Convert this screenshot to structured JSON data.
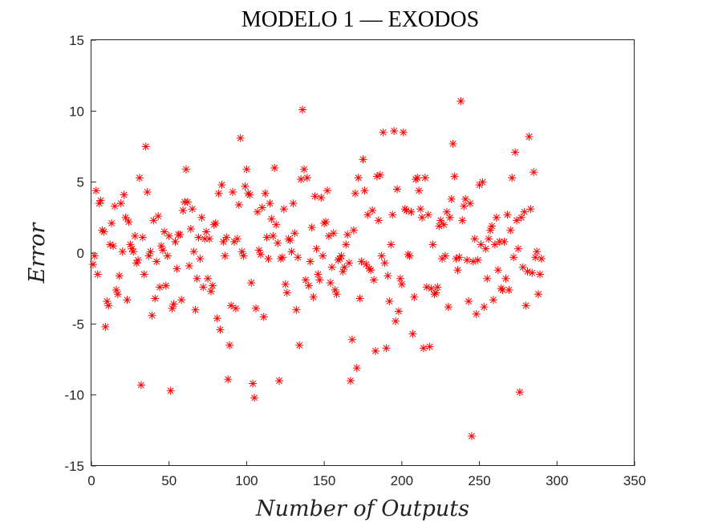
{
  "chart_data": {
    "type": "scatter",
    "title": "MODELO 1 — EXODOS",
    "xlabel": "Number of Outputs",
    "ylabel": "Error",
    "xlim": [
      0,
      350
    ],
    "ylim": [
      -15,
      15
    ],
    "xticks": [
      0,
      50,
      100,
      150,
      200,
      250,
      300,
      350
    ],
    "yticks": [
      -15,
      -10,
      -5,
      0,
      5,
      10,
      15
    ],
    "xtick_labels": [
      "0",
      "50",
      "100",
      "150",
      "200",
      "250",
      "300",
      "350"
    ],
    "ytick_labels": [
      "-15",
      "-10",
      "-5",
      "0",
      "5",
      "10",
      "15"
    ],
    "marker": "asterisk",
    "marker_color": "#ff0000",
    "grid": false,
    "legend": "none",
    "series": [
      {
        "points": [
          [
            1,
            -0.8
          ],
          [
            2,
            -0.2
          ],
          [
            3,
            4.4
          ],
          [
            4,
            -1.5
          ],
          [
            5,
            3.5
          ],
          [
            6,
            3.7
          ],
          [
            7,
            1.6
          ],
          [
            8,
            1.5
          ],
          [
            9,
            -5.2
          ],
          [
            10,
            -3.4
          ],
          [
            11,
            -3.7
          ],
          [
            12,
            0.6
          ],
          [
            13,
            2.1
          ],
          [
            14,
            0.5
          ],
          [
            15,
            3.3
          ],
          [
            16,
            -2.6
          ],
          [
            17,
            -2.9
          ],
          [
            18,
            -1.6
          ],
          [
            19,
            3.5
          ],
          [
            20,
            0.1
          ],
          [
            21,
            4.1
          ],
          [
            22,
            2.5
          ],
          [
            23,
            -3.3
          ],
          [
            24,
            2.2
          ],
          [
            25,
            0.6
          ],
          [
            26,
            0.3
          ],
          [
            27,
            0.1
          ],
          [
            28,
            1.2
          ],
          [
            29,
            -0.7
          ],
          [
            30,
            -0.5
          ],
          [
            31,
            5.3
          ],
          [
            32,
            -9.3
          ],
          [
            33,
            1.1
          ],
          [
            34,
            -1.5
          ],
          [
            35,
            7.5
          ],
          [
            36,
            4.3
          ],
          [
            37,
            -0.2
          ],
          [
            38,
            0.1
          ],
          [
            39,
            -4.4
          ],
          [
            40,
            2.3
          ],
          [
            41,
            -3.2
          ],
          [
            42,
            -0.6
          ],
          [
            43,
            2.6
          ],
          [
            44,
            -2.4
          ],
          [
            45,
            0.5
          ],
          [
            46,
            0.2
          ],
          [
            47,
            1.5
          ],
          [
            48,
            -2.3
          ],
          [
            49,
            -0.2
          ],
          [
            50,
            1.2
          ],
          [
            51,
            -9.7
          ],
          [
            52,
            -3.9
          ],
          [
            53,
            -3.6
          ],
          [
            54,
            0.8
          ],
          [
            55,
            -1.1
          ],
          [
            56,
            1.3
          ],
          [
            57,
            1.3
          ],
          [
            58,
            -3.3
          ],
          [
            59,
            3.0
          ],
          [
            60,
            3.6
          ],
          [
            61,
            5.9
          ],
          [
            62,
            3.6
          ],
          [
            63,
            -0.9
          ],
          [
            64,
            1.7
          ],
          [
            65,
            3.1
          ],
          [
            66,
            0.1
          ],
          [
            67,
            -4.0
          ],
          [
            68,
            -1.8
          ],
          [
            69,
            1.1
          ],
          [
            70,
            -0.4
          ],
          [
            71,
            2.5
          ],
          [
            72,
            -2.4
          ],
          [
            73,
            1.0
          ],
          [
            74,
            1.5
          ],
          [
            75,
            -1.8
          ],
          [
            76,
            1.0
          ],
          [
            77,
            -2.7
          ],
          [
            78,
            -2.3
          ],
          [
            79,
            2.0
          ],
          [
            80,
            2.1
          ],
          [
            81,
            -4.6
          ],
          [
            82,
            4.2
          ],
          [
            83,
            -5.4
          ],
          [
            84,
            4.8
          ],
          [
            85,
            0.8
          ],
          [
            86,
            -0.2
          ],
          [
            87,
            1.1
          ],
          [
            88,
            -8.9
          ],
          [
            89,
            -6.5
          ],
          [
            90,
            -3.7
          ],
          [
            91,
            4.3
          ],
          [
            92,
            0.8
          ],
          [
            93,
            -3.9
          ],
          [
            94,
            1.0
          ],
          [
            95,
            3.4
          ],
          [
            96,
            8.1
          ],
          [
            97,
            0.1
          ],
          [
            98,
            -0.2
          ],
          [
            99,
            4.7
          ],
          [
            100,
            5.9
          ],
          [
            101,
            4.2
          ],
          [
            102,
            4.1
          ],
          [
            103,
            -2.1
          ],
          [
            104,
            -9.2
          ],
          [
            105,
            -10.2
          ],
          [
            106,
            -3.9
          ],
          [
            107,
            2.9
          ],
          [
            108,
            0.2
          ],
          [
            109,
            -0.1
          ],
          [
            110,
            3.2
          ],
          [
            111,
            -4.5
          ],
          [
            112,
            4.2
          ],
          [
            113,
            1.1
          ],
          [
            114,
            -0.4
          ],
          [
            115,
            3.5
          ],
          [
            116,
            2.4
          ],
          [
            117,
            1.2
          ],
          [
            118,
            6.0
          ],
          [
            119,
            2.0
          ],
          [
            120,
            0.7
          ],
          [
            121,
            -9.0
          ],
          [
            122,
            -0.4
          ],
          [
            123,
            -0.3
          ],
          [
            124,
            3.1
          ],
          [
            125,
            -2.2
          ],
          [
            126,
            -2.8
          ],
          [
            127,
            1.0
          ],
          [
            128,
            0.9
          ],
          [
            129,
            0.1
          ],
          [
            130,
            3.5
          ],
          [
            131,
            1.4
          ],
          [
            132,
            -4.0
          ],
          [
            133,
            -0.3
          ],
          [
            134,
            -6.5
          ],
          [
            135,
            5.2
          ],
          [
            136,
            10.1
          ],
          [
            137,
            5.9
          ],
          [
            138,
            -1.9
          ],
          [
            139,
            5.3
          ],
          [
            140,
            -2.3
          ],
          [
            141,
            -0.6
          ],
          [
            142,
            1.8
          ],
          [
            143,
            -3.1
          ],
          [
            144,
            4.0
          ],
          [
            145,
            0.3
          ],
          [
            146,
            -1.5
          ],
          [
            147,
            -1.9
          ],
          [
            148,
            3.9
          ],
          [
            149,
            -0.2
          ],
          [
            150,
            2.1
          ],
          [
            151,
            2.2
          ],
          [
            152,
            4.4
          ],
          [
            153,
            1.2
          ],
          [
            154,
            -2.1
          ],
          [
            155,
            -1.0
          ],
          [
            156,
            1.4
          ],
          [
            157,
            -2.6
          ],
          [
            158,
            -2.9
          ],
          [
            159,
            -0.5
          ],
          [
            160,
            -0.4
          ],
          [
            161,
            -0.2
          ],
          [
            162,
            -1.3
          ],
          [
            163,
            -1.0
          ],
          [
            164,
            0.6
          ],
          [
            165,
            1.3
          ],
          [
            166,
            -0.7
          ],
          [
            167,
            -9.0
          ],
          [
            168,
            -6.1
          ],
          [
            169,
            1.6
          ],
          [
            170,
            4.2
          ],
          [
            171,
            -8.1
          ],
          [
            172,
            5.3
          ],
          [
            173,
            -3.2
          ],
          [
            174,
            -0.6
          ],
          [
            175,
            6.6
          ],
          [
            176,
            4.4
          ],
          [
            177,
            -0.8
          ],
          [
            178,
            2.7
          ],
          [
            179,
            -1.1
          ],
          [
            180,
            -1.2
          ],
          [
            181,
            3.0
          ],
          [
            182,
            -1.9
          ],
          [
            183,
            -6.9
          ],
          [
            184,
            5.4
          ],
          [
            185,
            2.3
          ],
          [
            186,
            5.5
          ],
          [
            187,
            -0.2
          ],
          [
            188,
            8.5
          ],
          [
            189,
            -0.7
          ],
          [
            190,
            -6.7
          ],
          [
            191,
            -1.6
          ],
          [
            192,
            -3.4
          ],
          [
            193,
            0.6
          ],
          [
            194,
            2.7
          ],
          [
            195,
            8.6
          ],
          [
            196,
            -4.8
          ],
          [
            197,
            4.5
          ],
          [
            198,
            -4.1
          ],
          [
            199,
            -1.8
          ],
          [
            200,
            -2.2
          ],
          [
            201,
            8.5
          ],
          [
            202,
            3.1
          ],
          [
            203,
            3.0
          ],
          [
            204,
            -0.1
          ],
          [
            205,
            -0.2
          ],
          [
            206,
            2.9
          ],
          [
            207,
            -5.7
          ],
          [
            208,
            -3.1
          ],
          [
            209,
            5.2
          ],
          [
            210,
            5.3
          ],
          [
            211,
            4.4
          ],
          [
            212,
            3.1
          ],
          [
            213,
            2.5
          ],
          [
            214,
            -6.7
          ],
          [
            215,
            5.3
          ],
          [
            216,
            -2.4
          ],
          [
            217,
            2.7
          ],
          [
            218,
            -6.6
          ],
          [
            219,
            -2.5
          ],
          [
            220,
            0.6
          ],
          [
            221,
            -2.9
          ],
          [
            222,
            -2.8
          ],
          [
            223,
            -2.4
          ],
          [
            224,
            1.9
          ],
          [
            225,
            2.3
          ],
          [
            226,
            -0.4
          ],
          [
            227,
            2.0
          ],
          [
            228,
            -0.2
          ],
          [
            229,
            2.9
          ],
          [
            230,
            -3.8
          ],
          [
            231,
            2.5
          ],
          [
            232,
            3.8
          ],
          [
            233,
            7.7
          ],
          [
            234,
            5.4
          ],
          [
            235,
            -0.4
          ],
          [
            236,
            -1.2
          ],
          [
            237,
            -0.3
          ],
          [
            238,
            10.7
          ],
          [
            239,
            2.3
          ],
          [
            240,
            3.3
          ],
          [
            241,
            3.8
          ],
          [
            242,
            -0.5
          ],
          [
            243,
            -3.4
          ],
          [
            244,
            3.5
          ],
          [
            245,
            -12.9
          ],
          [
            246,
            -0.6
          ],
          [
            247,
            1.0
          ],
          [
            248,
            -4.3
          ],
          [
            249,
            -0.5
          ],
          [
            250,
            4.8
          ],
          [
            251,
            0.6
          ],
          [
            252,
            5.0
          ],
          [
            253,
            -3.8
          ],
          [
            254,
            0.3
          ],
          [
            255,
            -1.8
          ],
          [
            256,
            1.0
          ],
          [
            257,
            1.6
          ],
          [
            258,
            1.9
          ],
          [
            259,
            -3.3
          ],
          [
            260,
            0.6
          ],
          [
            261,
            2.5
          ],
          [
            262,
            -1.2
          ],
          [
            263,
            0.8
          ],
          [
            264,
            -2.5
          ],
          [
            265,
            -2.6
          ],
          [
            266,
            0.8
          ],
          [
            267,
            -1.8
          ],
          [
            268,
            2.7
          ],
          [
            269,
            -2.6
          ],
          [
            270,
            1.6
          ],
          [
            271,
            5.3
          ],
          [
            272,
            -0.3
          ],
          [
            273,
            7.1
          ],
          [
            274,
            2.3
          ],
          [
            275,
            0.3
          ],
          [
            276,
            -9.8
          ],
          [
            277,
            2.5
          ],
          [
            278,
            -1.0
          ],
          [
            279,
            2.9
          ],
          [
            280,
            -3.7
          ],
          [
            281,
            -1.3
          ],
          [
            282,
            8.2
          ],
          [
            283,
            3.1
          ],
          [
            284,
            -1.4
          ],
          [
            285,
            5.7
          ],
          [
            286,
            -0.3
          ],
          [
            287,
            0.1
          ],
          [
            288,
            -2.9
          ],
          [
            289,
            -1.5
          ],
          [
            290,
            -0.4
          ]
        ]
      }
    ]
  }
}
